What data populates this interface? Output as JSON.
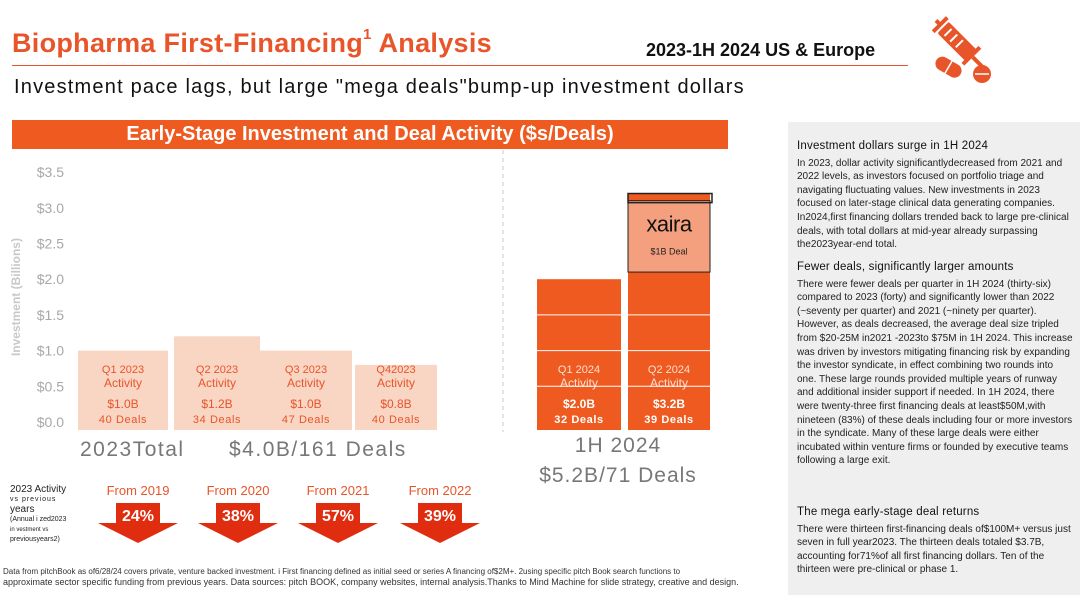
{
  "header": {
    "title": "Biopharma First-Financing",
    "title_sup": "1",
    "title_suffix": " Analysis",
    "right_title": "2023-1H 2024 US & Europe",
    "headline": "Investment pace lags, but large \"mega deals\"bump-up investment dollars",
    "logo_icon": "syringe-pill-icon"
  },
  "banner": "Early-Stage Investment and Deal Activity ($s/Deals)",
  "chart_data": {
    "type": "bar",
    "ylabel": "Investment (Billions)",
    "ylim": [
      0,
      3.5
    ],
    "yticks": [
      "$0.0",
      "$0.5",
      "$1.0",
      "$1.5",
      "$2.0",
      "$2.5",
      "$3.0",
      "$3.5"
    ],
    "categories": [
      "Q1 2023",
      "Q2 2023",
      "Q3 2023",
      "Q4 2023",
      "Q1 2024",
      "Q2 2024"
    ],
    "values": [
      1.0,
      1.2,
      1.0,
      0.8,
      2.0,
      3.2
    ],
    "deals": [
      40,
      34,
      47,
      40,
      32,
      39
    ],
    "bars": [
      {
        "name": "Q1  2023",
        "sub": "Activity",
        "amount": "$1.0B",
        "deals": "40 Deals",
        "value": 1.0,
        "group": "2023"
      },
      {
        "name": "Q2 2023",
        "sub": "Activity",
        "amount": "$1.2B",
        "deals": "34  Deals",
        "value": 1.2,
        "group": "2023"
      },
      {
        "name": "Q3 2023",
        "sub": "Activity",
        "amount": "$1.0B",
        "deals": "47 Deals",
        "value": 1.0,
        "group": "2023"
      },
      {
        "name": "Q42023",
        "sub": "Activity",
        "amount": "$0.8B",
        "deals": "40  Deals",
        "value": 0.8,
        "group": "2023"
      },
      {
        "name": "Q1 2024",
        "sub": "Activity",
        "amount": "$2.0B",
        "deals": "32 Deals",
        "value": 2.0,
        "group": "2024"
      },
      {
        "name": "Q2 2024",
        "sub": "Activity",
        "amount": "$3.2B",
        "deals": "39 Deals",
        "value": 3.2,
        "group": "2024"
      }
    ],
    "highlight": {
      "brand": "xaira",
      "label": "$1B Deal",
      "from": 2.1,
      "to": 3.1
    },
    "total_2023": {
      "label": "2023Total",
      "value": "$4.0B/161  Deals"
    },
    "total_1h2024": {
      "label": "1H  2024",
      "value": "$5.2B/71  Deals"
    },
    "comparisons": [
      {
        "label": "From 2019",
        "pct": "24%"
      },
      {
        "label": "From 2020",
        "pct": "38%"
      },
      {
        "label": "From 2021",
        "pct": "57%"
      },
      {
        "label": "From 2022",
        "pct": "39%"
      }
    ],
    "comparison_note": {
      "line1": "2023 Activity",
      "line2": "vs previous",
      "line3": "years",
      "line4": "(Annual i zed2023",
      "line5": "in vestment vs",
      "line6": "previousyears2)"
    }
  },
  "sidebar": {
    "sections": [
      {
        "heading": "Investment dollars surge in  1H 2024",
        "body": "In 2023, dollar activity significantlydecreased from 2021 and 2022 levels, as investors focused on portfolio triage and navigating fluctuating values. New investments in 2023 focused on later-stage clinical data generating companies.  In2024,first financing dollars trended back to large pre-clinical deals, with total dollars at mid-year already surpassing the2023year-end total."
      },
      {
        "heading": "Fewer deals, significantly larger amounts",
        "body": "There were fewer deals per quarter in  1H 2024 (thirty-six) compared to 2023 (forty) and significantly lower than 2022  (~seventy per quarter) and 2021  (~ninety per quarter).  However, as deals decreased, the average deal size tripled from $20-25M  in2021 -2023to $75M  in 1H 2024. This increase was driven by investors mitigating financing  risk by expanding the investor syndicate,  in effect combining two rounds into one. These large rounds provided multiple years of runway and additional insider support if needed.  In 1H 2024, there were twenty-three first financing deals at least$50M,with nineteen (83%) of these deals including four or more investors  in the syndicate.  Many of these large deals were either incubated within venture firms or founded by executive teams following  a  large exit."
      },
      {
        "heading": "The mega early-stage deal returns",
        "body": "There were thirteen first-financing deals of$100M+ versus just seven in full year2023. The thirteen deals totaled $3.7B,  accounting for71%of all first financing dollars. Ten of the thirteen were pre-clinical or phase  1."
      }
    ]
  },
  "footnote": {
    "line1": "Data  from  pitchBook  as  of6/28/24  covers  private,  venture  backed  investment.  i  First  financing  defined  as  initial  seed  or  series  A  financing  of$2M+.  2using  specific  pitch  Book  search  functions  to",
    "line2": "approximate sector specific funding from previous years. Data sources: pitch BOOK, company websites, internal analysis.Thanks to Mind Machine for slide strategy, creative and design."
  },
  "colors": {
    "accent": "#e8552a",
    "bar_2023": "#f9d5c4",
    "bar_2024": "#ee5a1f",
    "highlight": "#f4a07f",
    "text_2023": "#e8552a"
  }
}
